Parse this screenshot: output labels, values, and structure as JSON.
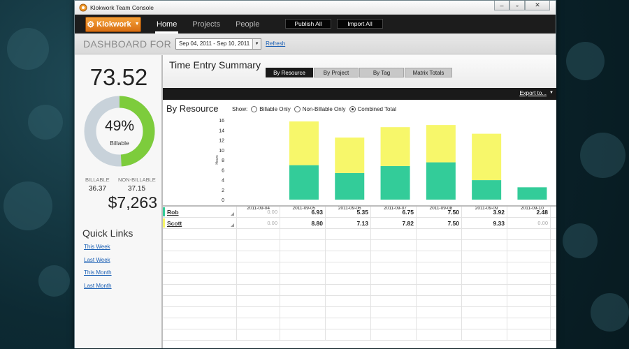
{
  "window": {
    "title": "Klokwork Team Console"
  },
  "topnav": {
    "logo": "Klokwork",
    "tabs": [
      {
        "label": "Home"
      },
      {
        "label": "Projects"
      },
      {
        "label": "People"
      }
    ],
    "publish_all": "Publish All",
    "import_all": "Import All"
  },
  "dashbar": {
    "label": "DASHBOARD FOR",
    "date_range": "Sep 04, 2011 - Sep 10, 2011",
    "refresh": "Refresh"
  },
  "summary": {
    "total_hours": "73.52",
    "billable_pct": 0.49,
    "billable_pct_label": "49%",
    "billable_sub": "Billable",
    "billable_label": "BILLABLE",
    "billable_value": "36.37",
    "nonbillable_label": "NON-BILLABLE",
    "nonbillable_value": "37.15",
    "amount": "$7,263",
    "colors": {
      "billable": "#7dcc3c",
      "nonbillable": "#c8d2da"
    }
  },
  "quick_links": {
    "title": "Quick Links",
    "items": [
      {
        "label": "This Week"
      },
      {
        "label": "Last Week"
      },
      {
        "label": "This Month"
      },
      {
        "label": "Last Month"
      }
    ]
  },
  "report": {
    "title": "Time Entry Summary",
    "tabs": [
      {
        "label": "By Resource",
        "active": true
      },
      {
        "label": "By Project",
        "active": false
      },
      {
        "label": "By Tag",
        "active": false
      },
      {
        "label": "Matrix Totals",
        "active": false
      }
    ],
    "export": "Export to...",
    "chart_title": "By Resource",
    "show_label": "Show:",
    "show_options": [
      {
        "label": "Billable Only",
        "selected": false
      },
      {
        "label": "Non-Billable Only",
        "selected": false
      },
      {
        "label": "Combined Total",
        "selected": true
      }
    ]
  },
  "chart_data": {
    "type": "bar",
    "stacked": true,
    "categories": [
      "2011-09-04",
      "2011-09-05",
      "2011-09-06",
      "2011-09-07",
      "2011-09-08",
      "2011-09-09",
      "2011-09-10"
    ],
    "series": [
      {
        "name": "Rob",
        "color": "#33cc99",
        "values": [
          0.0,
          6.93,
          5.35,
          6.75,
          7.5,
          3.92,
          2.48
        ]
      },
      {
        "name": "Scott",
        "color": "#f7f76a",
        "values": [
          0.0,
          8.8,
          7.13,
          7.82,
          7.5,
          9.33,
          0.0
        ]
      }
    ],
    "ylabel": "Hours",
    "ylim": [
      0,
      16
    ],
    "yticks": [
      0,
      2,
      4,
      6,
      8,
      10,
      12,
      14,
      16
    ],
    "grid": false,
    "legend": "none"
  },
  "table": {
    "rows": [
      {
        "name": "Rob",
        "color": "#33cc99",
        "values": [
          "0.00",
          "6.93",
          "5.35",
          "6.75",
          "7.50",
          "3.92",
          "2.48"
        ]
      },
      {
        "name": "Scott",
        "color": "#f7f76a",
        "values": [
          "8.80",
          "7.13",
          "7.82",
          "7.50",
          "9.33",
          "0.00"
        ],
        "first": "0.00"
      }
    ]
  }
}
